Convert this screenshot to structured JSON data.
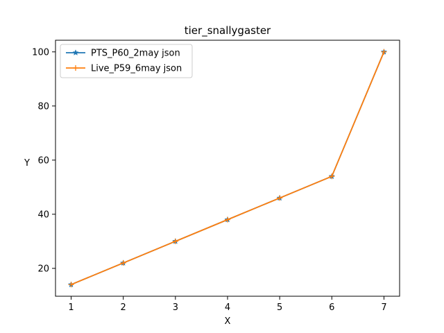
{
  "chart_data": {
    "type": "line",
    "title": "tier_snallygaster",
    "xlabel": "X",
    "ylabel": "Y",
    "x": [
      1,
      2,
      3,
      4,
      5,
      6,
      7
    ],
    "xticks": [
      1,
      2,
      3,
      4,
      5,
      6,
      7
    ],
    "yticks": [
      20,
      40,
      60,
      80,
      100
    ],
    "xlim": [
      0.7,
      7.3
    ],
    "ylim": [
      9.7,
      104.3
    ],
    "grid": false,
    "legend_position": "top-left",
    "series": [
      {
        "name": "PTS_P60_2may json",
        "values": [
          14,
          22,
          30,
          38,
          46,
          54,
          100
        ],
        "color": "#1f77b4",
        "marker": "star"
      },
      {
        "name": "Live_P59_6may json",
        "values": [
          14,
          22,
          30,
          38,
          46,
          54,
          100
        ],
        "color": "#ff7f0e",
        "marker": "plus"
      }
    ]
  }
}
